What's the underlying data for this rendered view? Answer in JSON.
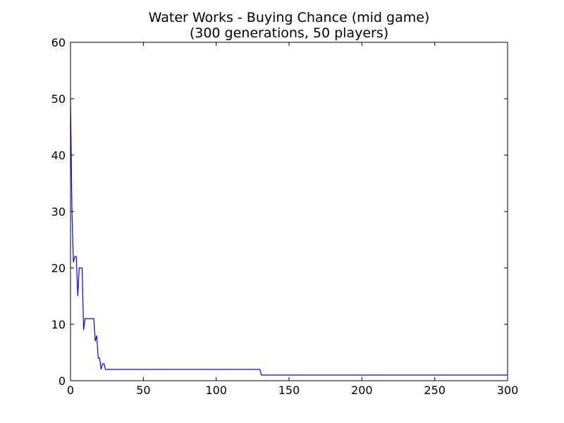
{
  "chart_data": {
    "type": "line",
    "title": "Water Works - Buying Chance (mid game)",
    "subtitle": "(300 generations, 50 players)",
    "xlabel": "",
    "ylabel": "",
    "xlim": [
      0,
      300
    ],
    "ylim": [
      0,
      60
    ],
    "xticks": [
      "0",
      "50",
      "100",
      "150",
      "200",
      "250",
      "300"
    ],
    "yticks": [
      "0",
      "10",
      "20",
      "30",
      "40",
      "50",
      "60"
    ],
    "grid": false,
    "legend": "none",
    "series": [
      {
        "color": "#0000ff",
        "x": [
          0,
          1,
          2,
          3,
          4,
          5,
          6,
          7,
          8,
          9,
          10,
          11,
          12,
          13,
          14,
          15,
          16,
          17,
          18,
          19,
          20,
          21,
          22,
          23,
          24,
          25,
          50,
          100,
          129,
          130,
          131,
          150,
          200,
          250,
          300
        ],
        "y": [
          50,
          30,
          21,
          22,
          22,
          15,
          20,
          20,
          20,
          9,
          11,
          11,
          11,
          11,
          11,
          11,
          11,
          7,
          8,
          4,
          4,
          2,
          3,
          3,
          2,
          2,
          2,
          2,
          2,
          2,
          1,
          1,
          1,
          1,
          1
        ]
      }
    ]
  }
}
